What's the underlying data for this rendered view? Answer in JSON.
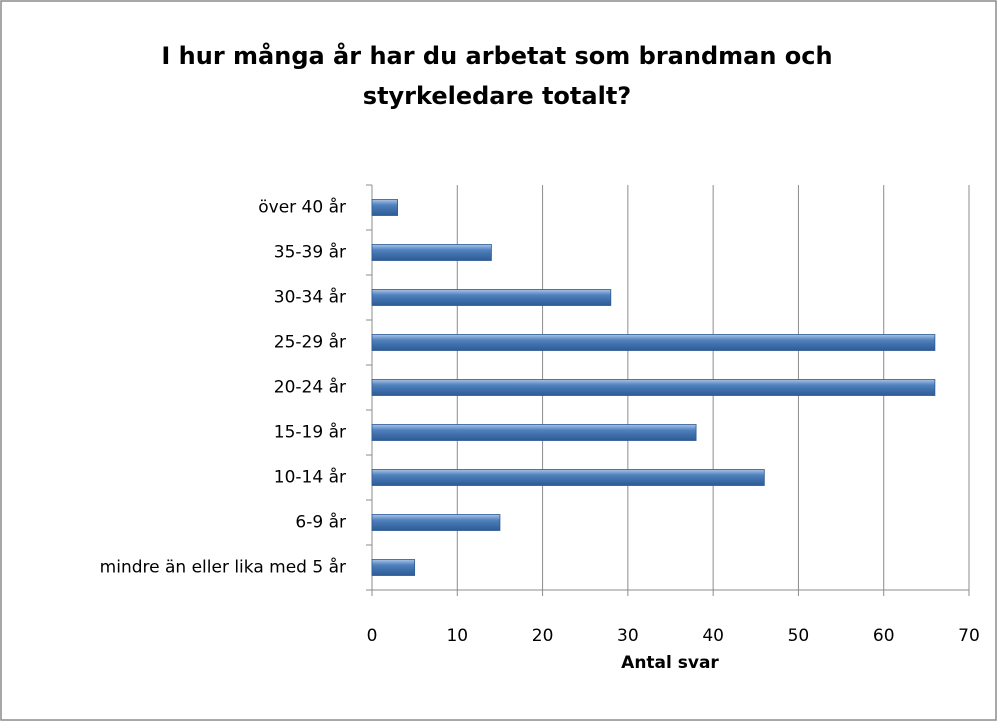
{
  "chart_data": {
    "type": "bar",
    "orientation": "horizontal",
    "title": [
      "I hur många år har du arbetat som brandman och",
      "styrkeledare totalt?"
    ],
    "categories": [
      "över 40 år",
      "35-39 år",
      "30-34 år",
      "25-29 år",
      "20-24 år",
      "15-19 år",
      "10-14 år",
      "6-9 år",
      "mindre än eller lika med 5 år"
    ],
    "values": [
      3,
      14,
      28,
      66,
      66,
      38,
      46,
      15,
      5
    ],
    "color": "#4f81bd",
    "xlabel": "Antal svar",
    "xlim": [
      0,
      70
    ],
    "xticks": [
      0,
      10,
      20,
      30,
      40,
      50,
      60,
      70
    ],
    "grid": true
  }
}
